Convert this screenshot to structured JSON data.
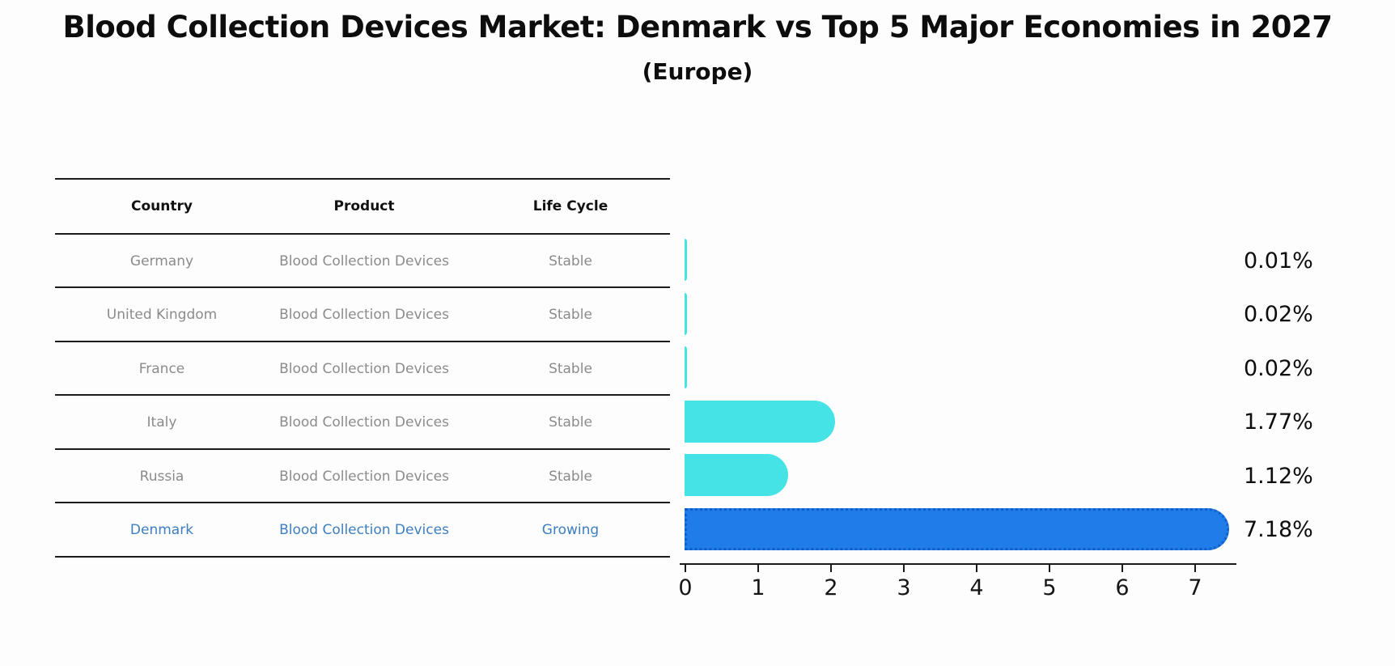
{
  "title": "Blood Collection Devices Market: Denmark vs Top 5 Major Economies in 2027",
  "subtitle": "(Europe)",
  "table": {
    "headers": [
      "Country",
      "Product",
      "Life Cycle"
    ],
    "rows": [
      {
        "country": "Germany",
        "product": "Blood Collection Devices",
        "life_cycle": "Stable",
        "highlighted": false
      },
      {
        "country": "United Kingdom",
        "product": "Blood Collection Devices",
        "life_cycle": "Stable",
        "highlighted": false
      },
      {
        "country": "France",
        "product": "Blood Collection Devices",
        "life_cycle": "Stable",
        "highlighted": false
      },
      {
        "country": "Italy",
        "product": "Blood Collection Devices",
        "life_cycle": "Stable",
        "highlighted": false
      },
      {
        "country": "Russia",
        "product": "Blood Collection Devices",
        "life_cycle": "Stable",
        "highlighted": false
      },
      {
        "country": "Denmark",
        "product": "Blood Collection Devices",
        "life_cycle": "Growing",
        "highlighted": true
      }
    ]
  },
  "chart_data": {
    "type": "bar",
    "orientation": "horizontal",
    "categories": [
      "Germany",
      "United Kingdom",
      "France",
      "Italy",
      "Russia",
      "Denmark"
    ],
    "values": [
      0.01,
      0.02,
      0.02,
      1.77,
      1.12,
      7.18
    ],
    "value_labels": [
      "0.01%",
      "0.02%",
      "0.02%",
      "1.77%",
      "1.12%",
      "7.18%"
    ],
    "x_ticks": [
      "0",
      "1",
      "2",
      "3",
      "4",
      "5",
      "6",
      "7"
    ],
    "xlim": [
      0,
      7.6
    ],
    "grid": false,
    "legend": "none",
    "bar_color": "#45e3e6",
    "highlight_color": "#1f7ce8",
    "highlight_border_color": "#135fc9",
    "highlight_index": 5
  },
  "colors": {
    "background": "#fdfdfd",
    "table_line": "#1a1a1a",
    "header_text": "#111111",
    "row_text": "#8b8b8b",
    "highlight_text": "#3d7ebf",
    "label_text": "#0d0d0d"
  }
}
